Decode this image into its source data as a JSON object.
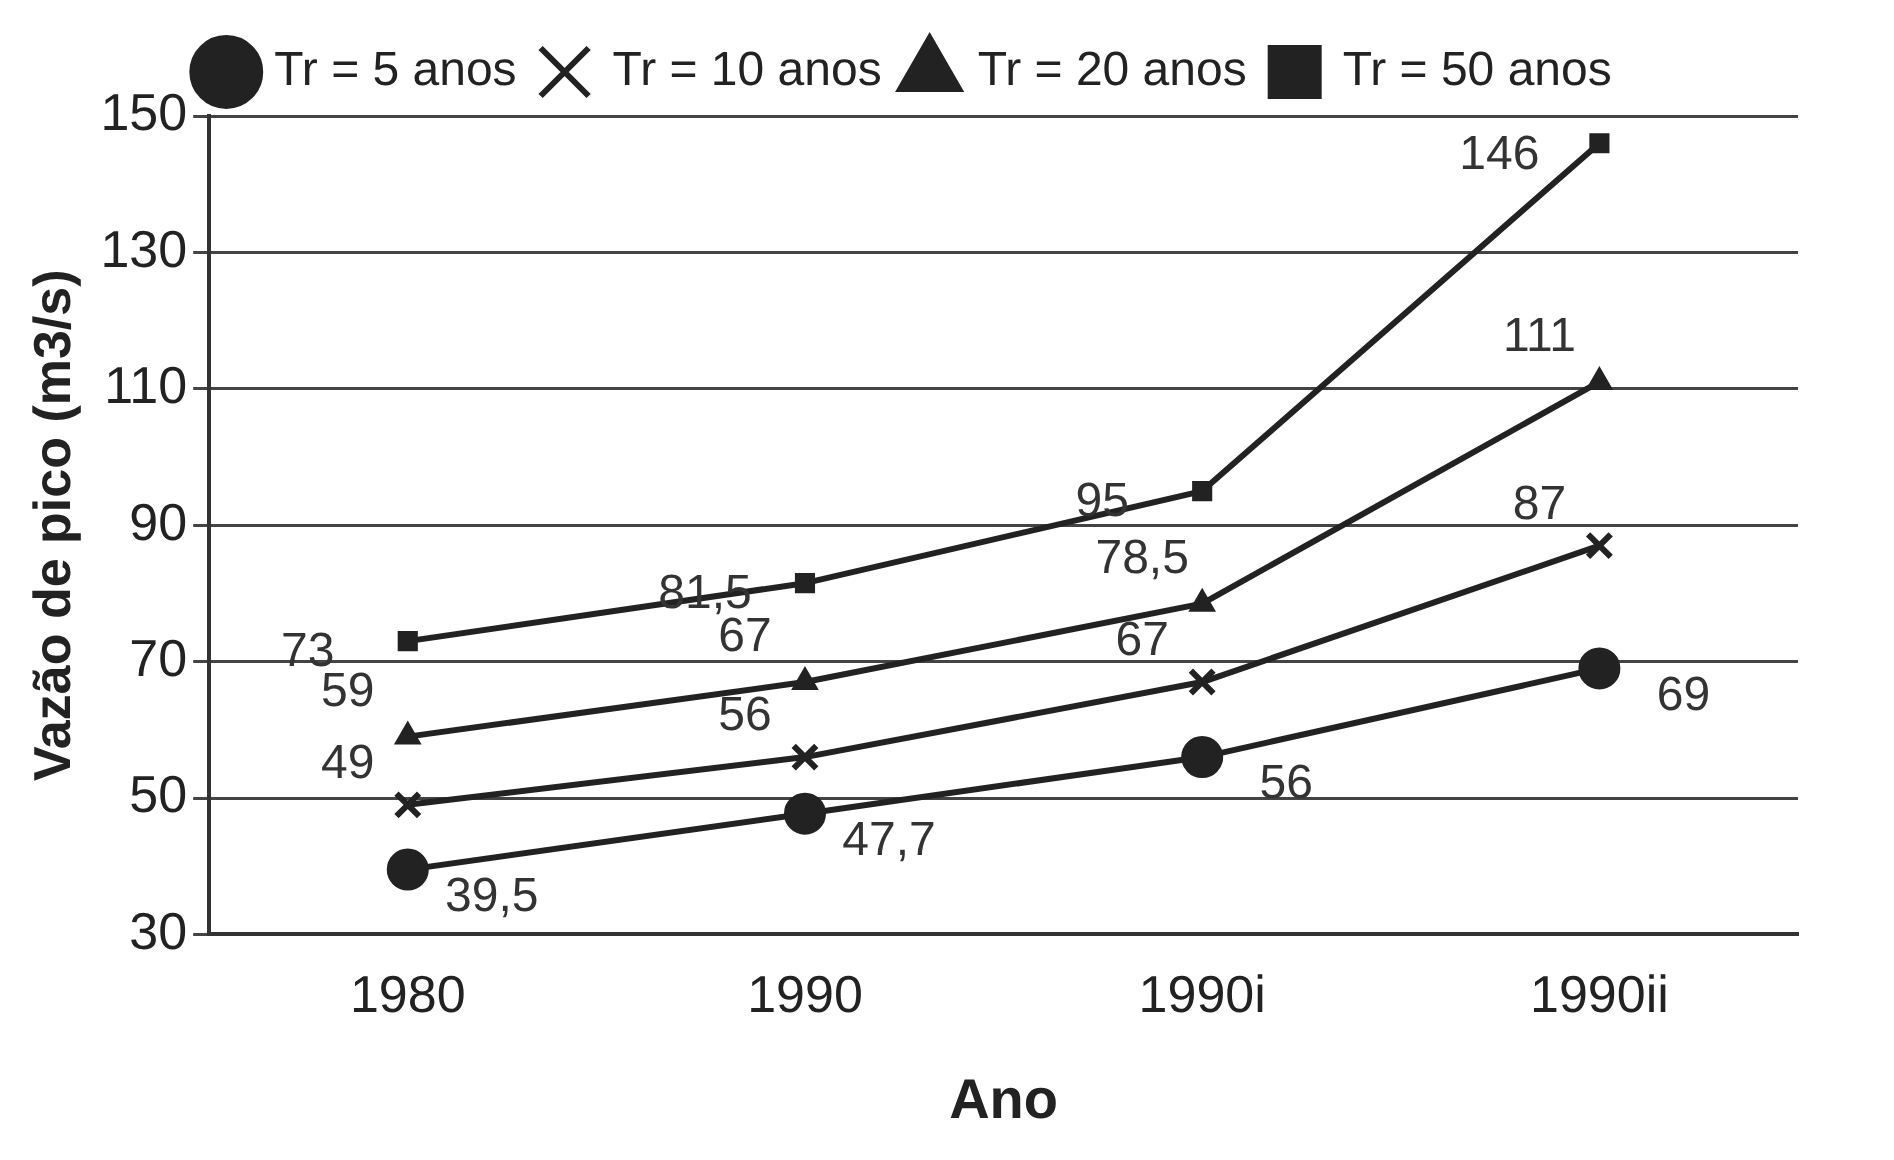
{
  "chart_data": {
    "type": "line",
    "xlabel": "Ano",
    "ylabel": "Vazão de pico (m3/s)",
    "categories": [
      "1980",
      "1990",
      "1990i",
      "1990ii"
    ],
    "series": [
      {
        "name": "Tr = 5 anos",
        "color": "#222222",
        "marker": "circle",
        "values": [
          39.5,
          47.7,
          56,
          69
        ],
        "value_labels": [
          "39,5",
          "47,7",
          "56",
          "69"
        ]
      },
      {
        "name": "Tr = 10 anos",
        "color": "#222222",
        "marker": "cross",
        "values": [
          49,
          56,
          67,
          87
        ],
        "value_labels": [
          "49",
          "56",
          "67",
          "87"
        ]
      },
      {
        "name": "Tr = 20 anos",
        "color": "#222222",
        "marker": "triangle",
        "values": [
          59,
          67,
          78.5,
          111
        ],
        "value_labels": [
          "59",
          "67",
          "78,5",
          "111"
        ]
      },
      {
        "name": "Tr = 50 anos",
        "color": "#222222",
        "marker": "square",
        "values": [
          73,
          81.5,
          95,
          146
        ],
        "value_labels": [
          "73",
          "81,5",
          "95",
          "146"
        ]
      }
    ],
    "ylim": [
      30,
      150
    ],
    "yticks": [
      30,
      50,
      70,
      90,
      110,
      130,
      150
    ],
    "grid": "y",
    "legend": "top"
  }
}
